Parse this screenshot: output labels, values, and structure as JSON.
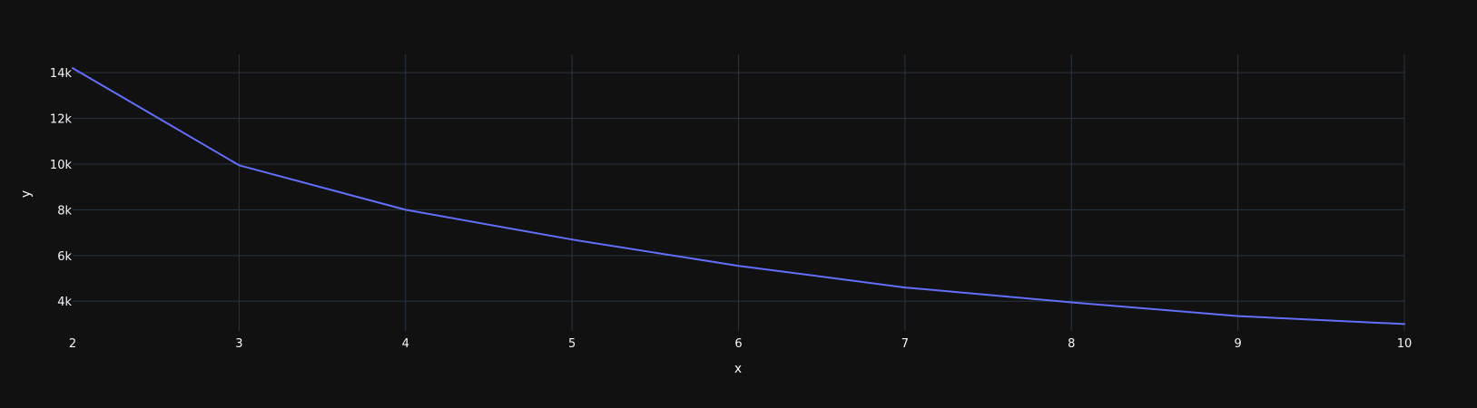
{
  "chart_data": {
    "type": "line",
    "title": "",
    "xlabel": "x",
    "ylabel": "y",
    "x": [
      2,
      3,
      4,
      5,
      6,
      7,
      8,
      9,
      10
    ],
    "series": [
      {
        "values": [
          14200,
          9950,
          8000,
          6700,
          5550,
          4600,
          3950,
          3350,
          3000
        ]
      }
    ],
    "xlim": [
      2,
      10
    ],
    "ylim": [
      2700,
      14800
    ],
    "x_ticks": [
      2,
      3,
      4,
      5,
      6,
      7,
      8,
      9,
      10
    ],
    "x_tick_labels": [
      "2",
      "3",
      "4",
      "5",
      "6",
      "7",
      "8",
      "9",
      "10"
    ],
    "y_ticks": [
      4000,
      6000,
      8000,
      10000,
      12000,
      14000
    ],
    "y_tick_labels": [
      "4k",
      "6k",
      "8k",
      "10k",
      "12k",
      "14k"
    ],
    "grid": true,
    "legend": "none",
    "colors": {
      "background": "#111111",
      "grid": "#283442",
      "text": "#f2f5fa",
      "series": "#636efa"
    }
  }
}
